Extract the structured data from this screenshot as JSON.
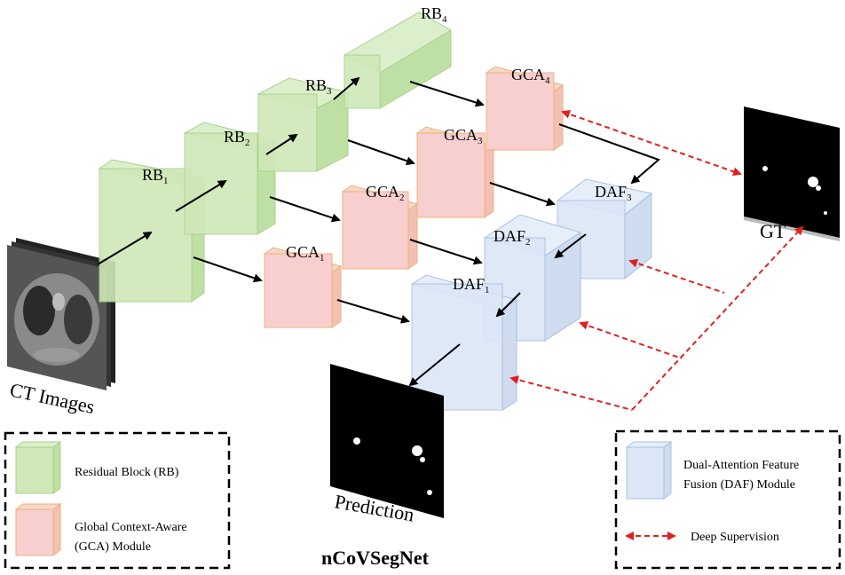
{
  "title": "nCoVSegNet",
  "labels": {
    "ct_images": "CT Images",
    "prediction": "Prediction",
    "gt": "GT"
  },
  "blocks": {
    "rb": [
      {
        "base": "RB",
        "sub": "1"
      },
      {
        "base": "RB",
        "sub": "2"
      },
      {
        "base": "RB",
        "sub": "3"
      },
      {
        "base": "RB",
        "sub": "4"
      }
    ],
    "gca": [
      {
        "base": "GCA",
        "sub": "1"
      },
      {
        "base": "GCA",
        "sub": "2"
      },
      {
        "base": "GCA",
        "sub": "3"
      },
      {
        "base": "GCA",
        "sub": "4"
      }
    ],
    "daf": [
      {
        "base": "DAF",
        "sub": "1"
      },
      {
        "base": "DAF",
        "sub": "2"
      },
      {
        "base": "DAF",
        "sub": "3"
      }
    ]
  },
  "legend_left": [
    {
      "text": "Residual Block (RB)"
    },
    {
      "line1": "Global Context-Aware",
      "line2": "(GCA) Module"
    }
  ],
  "legend_right": [
    {
      "line1": "Dual-Attention Feature",
      "line2": "Fusion (DAF) Module"
    },
    {
      "text": "Deep Supervision"
    }
  ],
  "colors": {
    "rb_fill": "#cfe8b8",
    "rb_stroke": "#a9d18e",
    "gca_fill": "#f8cfcf",
    "gca_stroke": "#f0b07a",
    "daf_fill": "#dbe6f6",
    "daf_stroke": "#a8c0e0",
    "supervision": "#e02020"
  }
}
